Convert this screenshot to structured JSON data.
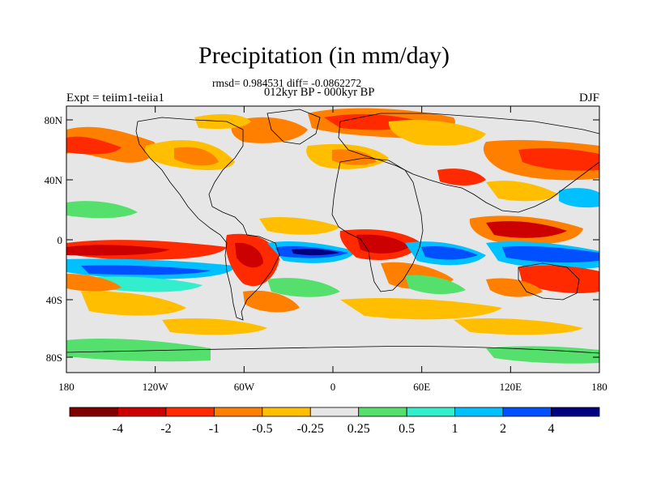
{
  "title": "Precipitation (in mm/day)",
  "stats_line": "rmsd= 0.984531 diff= -0.0862272",
  "period_line": "012kyr BP - 000kyr BP",
  "experiment_label": "Expt = teiim1-teiia1",
  "season_label": "DJF",
  "lat_ticks": [
    "80N",
    "40N",
    "0",
    "40S",
    "80S"
  ],
  "lon_ticks": [
    "180",
    "120W",
    "60W",
    "0",
    "60E",
    "120E",
    "180"
  ],
  "colorbar": {
    "colors": [
      "#800000",
      "#cc0000",
      "#ff2a00",
      "#ff7f00",
      "#ffbf00",
      "#e6e6e6",
      "#55e06e",
      "#33eecc",
      "#00c0ff",
      "#0050ff",
      "#000080"
    ],
    "labels": [
      "-4",
      "-2",
      "-1",
      "-0.5",
      "-0.25",
      "0.25",
      "0.5",
      "1",
      "2",
      "4"
    ]
  },
  "colors": {
    "background": "#e6e6e6",
    "coast": "#000000"
  }
}
